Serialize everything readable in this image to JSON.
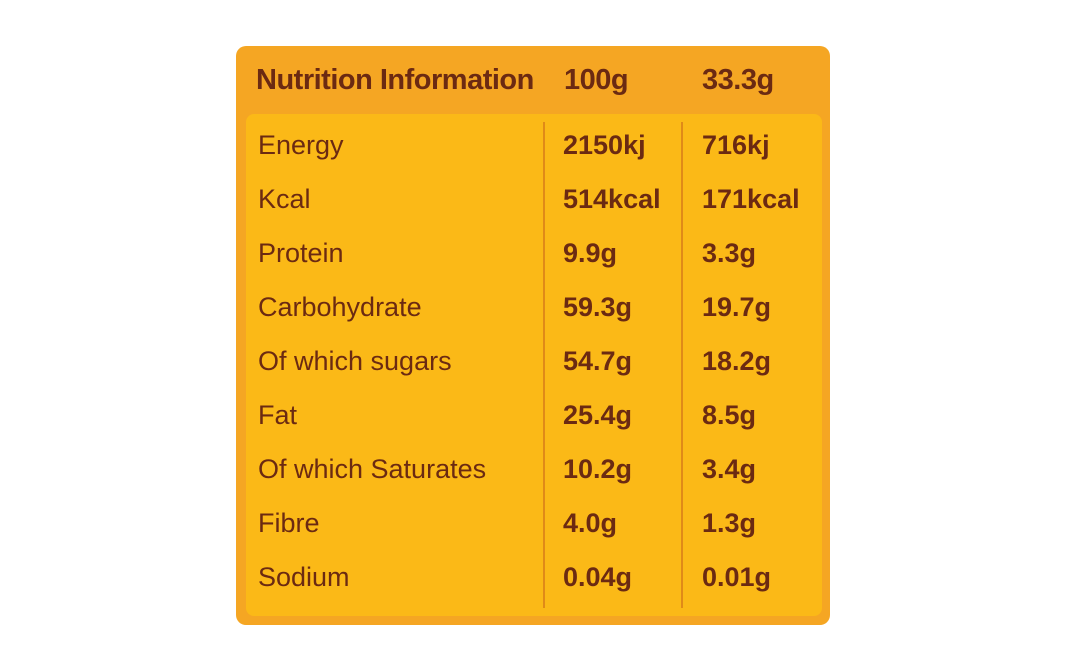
{
  "table": {
    "header": {
      "title": "Nutrition Information",
      "col1": "100g",
      "col2": "33.3g"
    },
    "rows": [
      {
        "label": "Energy",
        "v1": "2150kj",
        "v2": "716kj"
      },
      {
        "label": "Kcal",
        "v1": "514kcal",
        "v2": "171kcal"
      },
      {
        "label": "Protein",
        "v1": "9.9g",
        "v2": "3.3g"
      },
      {
        "label": "Carbohydrate",
        "v1": "59.3g",
        "v2": "19.7g"
      },
      {
        "label": "Of which sugars",
        "v1": "54.7g",
        "v2": "18.2g"
      },
      {
        "label": "Fat",
        "v1": "25.4g",
        "v2": "8.5g"
      },
      {
        "label": "Of which Saturates",
        "v1": "10.2g",
        "v2": "3.4g"
      },
      {
        "label": "Fibre",
        "v1": "4.0g",
        "v2": "1.3g"
      },
      {
        "label": "Sodium",
        "v1": "0.04g",
        "v2": "0.01g"
      }
    ],
    "colors": {
      "outer": "#f5a623",
      "inner": "#fbb917",
      "text": "#6b2a12"
    }
  }
}
